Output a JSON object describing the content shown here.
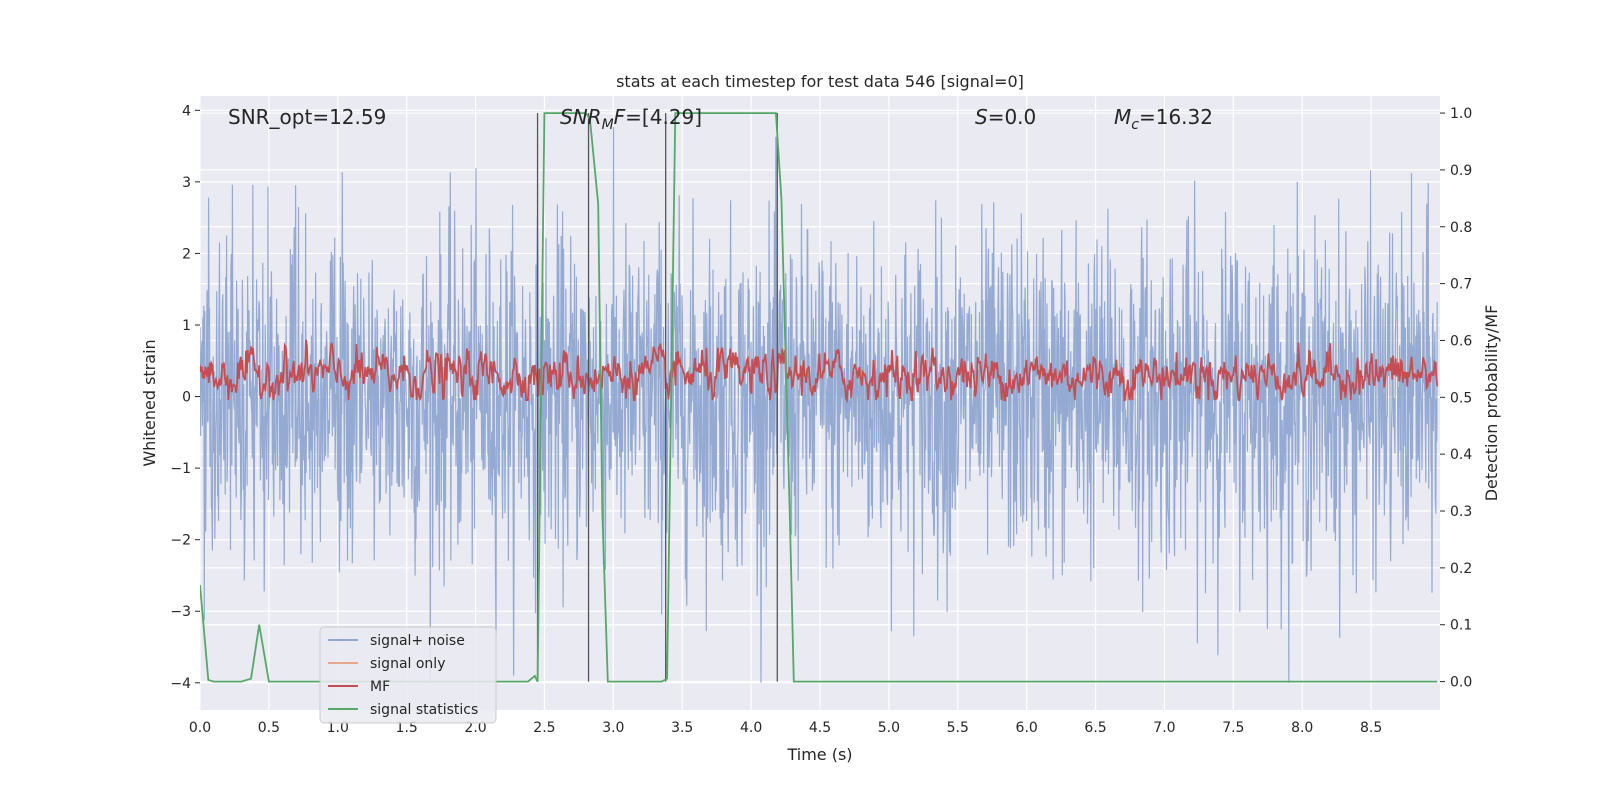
{
  "chart_data": {
    "type": "line",
    "title": "stats at each timestep for test data 546 [signal=0]",
    "xlabel": "Time (s)",
    "ylabel": "Whitened strain",
    "ylabel_right": "Detection probability/MF",
    "xlim": [
      0.0,
      9.0
    ],
    "ylim": [
      -4.38,
      4.2
    ],
    "ylim_right": [
      -0.05,
      1.03
    ],
    "x_ticks": [
      0.0,
      0.5,
      1.0,
      1.5,
      2.0,
      2.5,
      3.0,
      3.5,
      4.0,
      4.5,
      5.0,
      5.5,
      6.0,
      6.5,
      7.0,
      7.5,
      8.0,
      8.5
    ],
    "x_tick_labels": [
      "0.0",
      "0.5",
      "1.0",
      "1.5",
      "2.0",
      "2.5",
      "3.0",
      "3.5",
      "4.0",
      "4.5",
      "5.0",
      "5.5",
      "6.0",
      "6.5",
      "7.0",
      "7.5",
      "8.0",
      "8.5"
    ],
    "y_ticks": [
      -4,
      -3,
      -2,
      -1,
      0,
      1,
      2,
      3,
      4
    ],
    "y_tick_labels": [
      "−4",
      "−3",
      "−2",
      "−1",
      "0",
      "1",
      "2",
      "3",
      "4"
    ],
    "y_right_ticks": [
      0.0,
      0.1,
      0.2,
      0.3,
      0.4,
      0.5,
      0.6,
      0.7,
      0.8,
      0.9,
      1.0
    ],
    "y_right_tick_labels": [
      "0.0",
      "0.1",
      "0.2",
      "0.3",
      "0.4",
      "0.5",
      "0.6",
      "0.7",
      "0.8",
      "0.9",
      "1.0"
    ],
    "grid": true,
    "annotations": {
      "snr_opt": "SNR_opt=12.59",
      "snr_mf_base": "SNR",
      "snr_mf_sub": "M",
      "snr_mf_rest": "F",
      "snr_mf_value": "=[4.29]",
      "s_var": "S",
      "s_value": "=0.0",
      "mc_var": "M",
      "mc_sub": "c",
      "mc_value": "=16.32"
    },
    "legend": {
      "placement": "lower-left",
      "entries": [
        {
          "label": "signal+ noise",
          "color": "#8fa6d0"
        },
        {
          "label": "signal only",
          "color": "#e8a890"
        },
        {
          "label": "MF",
          "color": "#c44e52"
        },
        {
          "label": "signal statistics",
          "color": "#55a868"
        }
      ]
    },
    "series": [
      {
        "name": "signal+ noise",
        "axis": "left",
        "color": "#8fa6d0",
        "style": "dense noise, approximately 0 ± 3",
        "envelope_max": 3.8,
        "envelope_min": -4.0
      },
      {
        "name": "MF",
        "axis": "left",
        "color": "#c44e52",
        "style": "noise, approximately 0.3 ± 0.5",
        "center": 0.3,
        "envelope_max": 1.0,
        "envelope_min": -0.05
      },
      {
        "name": "signal statistics",
        "axis": "right",
        "color": "#55a868",
        "x": [
          0.0,
          0.06,
          0.1,
          0.3,
          0.37,
          0.43,
          0.5,
          2.38,
          2.43,
          2.45,
          2.5,
          2.8,
          2.83,
          2.89,
          2.92,
          2.96,
          3.35,
          3.39,
          3.45,
          4.18,
          4.22,
          4.28,
          4.31,
          8.98
        ],
        "y": [
          0.17,
          0.003,
          0.0,
          0.0,
          0.005,
          0.1,
          0.0,
          0.0,
          0.01,
          0.0,
          1.0,
          1.0,
          0.99,
          0.84,
          0.3,
          0.0,
          0.0,
          0.005,
          1.0,
          1.0,
          0.85,
          0.3,
          0.0,
          0.0
        ]
      }
    ],
    "vertical_markers_x": [
      2.45,
      2.82,
      3.38,
      4.19
    ]
  }
}
